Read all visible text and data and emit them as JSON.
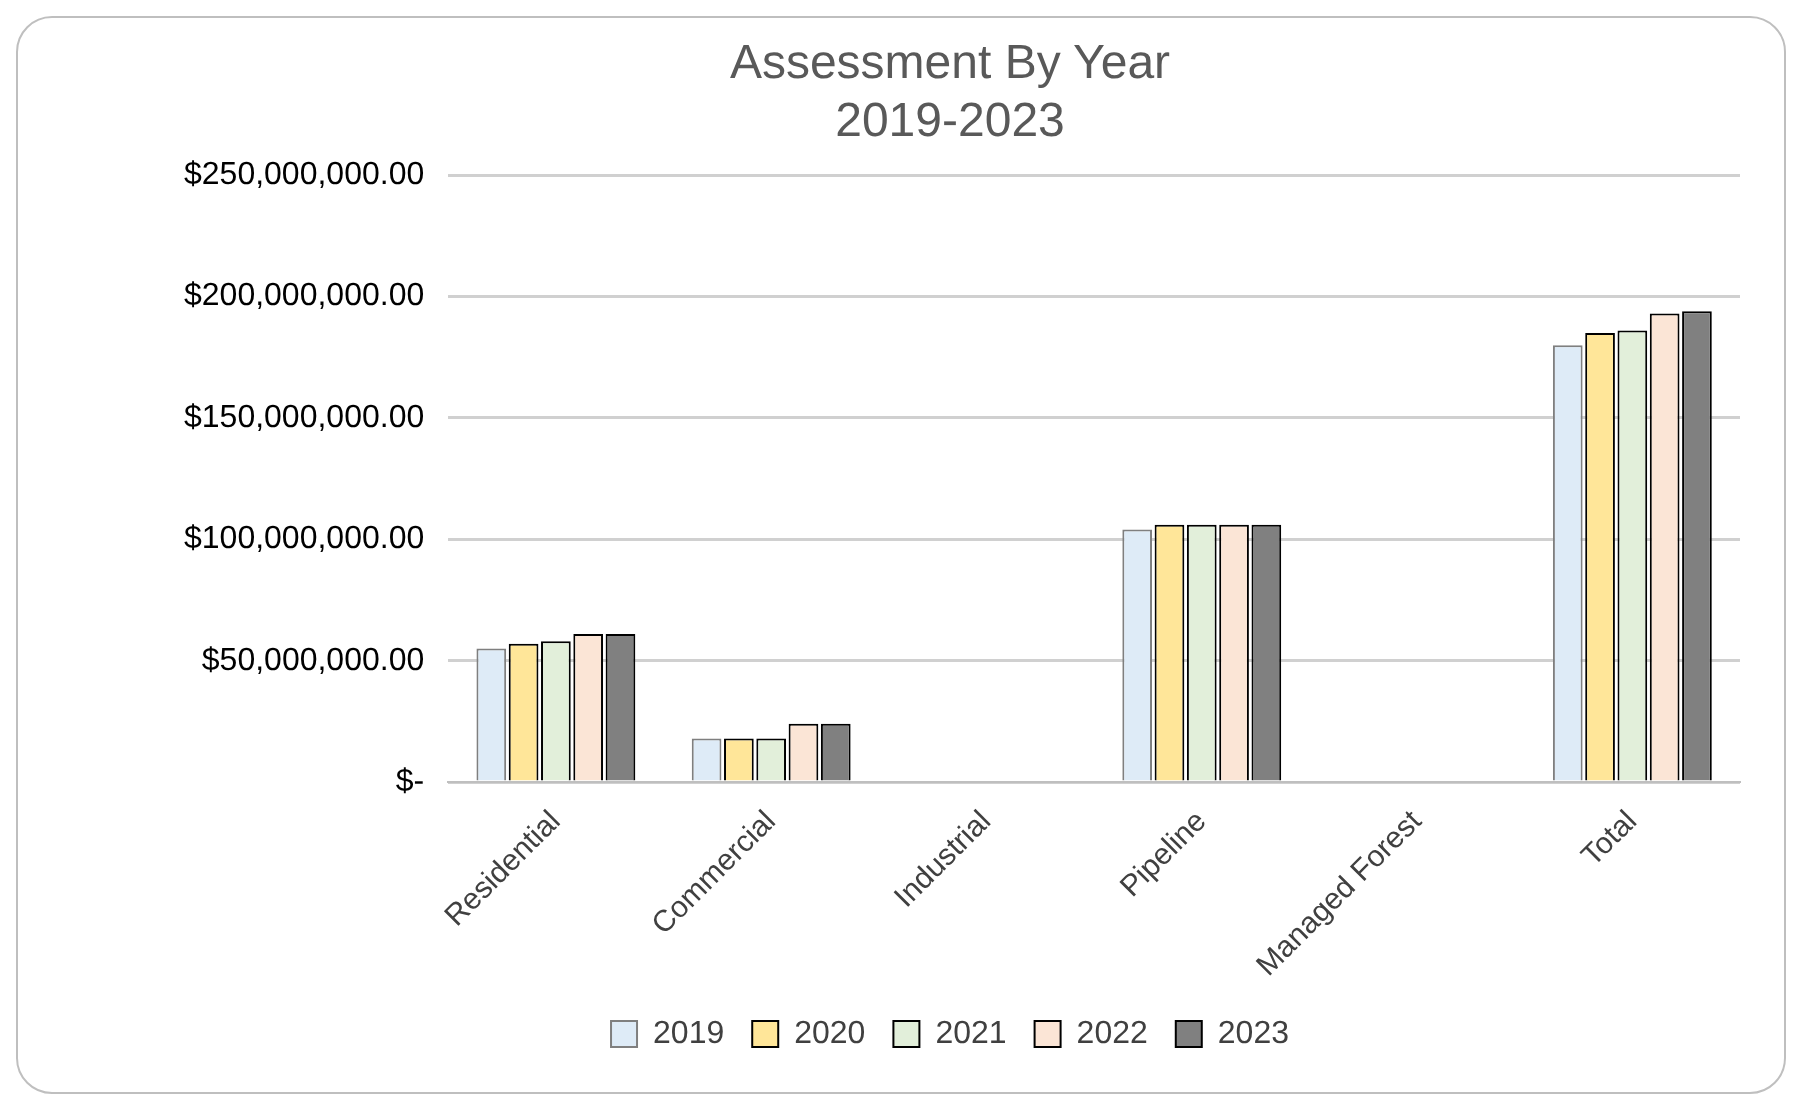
{
  "chart_data": {
    "type": "bar",
    "title": [
      "Assessment By Year",
      "2019-2023"
    ],
    "categories": [
      "Residential",
      "Commercial",
      "Industrial",
      "Pipeline",
      "Managed Forest",
      "Total"
    ],
    "series": [
      {
        "name": "2019",
        "color": "#deebf7",
        "values": [
          55000000,
          18000000,
          0,
          104000000,
          0,
          180000000
        ]
      },
      {
        "name": "2020",
        "color": "#ffe699",
        "values": [
          57000000,
          18000000,
          0,
          106000000,
          0,
          185000000
        ]
      },
      {
        "name": "2021",
        "color": "#e2efda",
        "values": [
          58000000,
          18000000,
          0,
          106000000,
          0,
          186000000
        ]
      },
      {
        "name": "2022",
        "color": "#fbe5d6",
        "values": [
          61000000,
          24000000,
          0,
          106000000,
          0,
          193000000
        ]
      },
      {
        "name": "2023",
        "color": "#808080",
        "values": [
          61000000,
          24000000,
          0,
          106000000,
          0,
          194000000
        ]
      }
    ],
    "ylim": [
      0,
      250000000
    ],
    "yticks": [
      {
        "value": 0,
        "label": "$-"
      },
      {
        "value": 50000000,
        "label": "$50,000,000.00"
      },
      {
        "value": 100000000,
        "label": "$100,000,000.00"
      },
      {
        "value": 150000000,
        "label": "$150,000,000.00"
      },
      {
        "value": 200000000,
        "label": "$200,000,000.00"
      },
      {
        "value": 250000000,
        "label": "$250,000,000.00"
      }
    ],
    "grid": "y",
    "legend": "bottom"
  }
}
